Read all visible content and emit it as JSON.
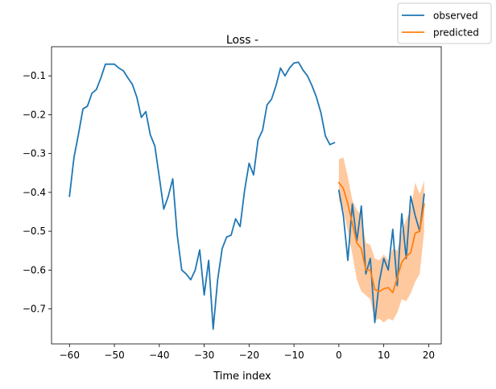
{
  "chart_data": {
    "type": "line",
    "title": "Loss -",
    "xlabel": "Time index",
    "ylabel": "",
    "xlim": [
      -64,
      22.8
    ],
    "ylim": [
      -0.79,
      -0.025
    ],
    "xticks": [
      -60,
      -50,
      -40,
      -30,
      -20,
      -10,
      0,
      10,
      20
    ],
    "xtick_labels": [
      "−60",
      "−50",
      "−40",
      "−30",
      "−20",
      "−10",
      "0",
      "10",
      "20"
    ],
    "yticks": [
      -0.1,
      -0.2,
      -0.3,
      -0.4,
      -0.5,
      -0.6,
      -0.7
    ],
    "ytick_labels": [
      "−0.1",
      "−0.2",
      "−0.3",
      "−0.4",
      "−0.5",
      "−0.6",
      "−0.7"
    ],
    "grid": false,
    "legend_position": "top-right",
    "legend": [
      "observed",
      "predicted"
    ],
    "series": [
      {
        "name": "observed",
        "color": "#1f77b4",
        "x": [
          -60,
          -59,
          -58,
          -57,
          -56,
          -55,
          -54,
          -53,
          -52,
          -51,
          -50,
          -49,
          -48,
          -47,
          -46,
          -45,
          -44,
          -43,
          -42,
          -41,
          -40,
          -39,
          -38,
          -37,
          -36,
          -35,
          -34,
          -33,
          -32,
          -31,
          -30,
          -29,
          -28,
          -27,
          -26,
          -25,
          -24,
          -23,
          -22,
          -21,
          -20,
          -19,
          -18,
          -17,
          -16,
          -15,
          -14,
          -13,
          -12,
          -11,
          -10,
          -9,
          -8,
          -7,
          -6,
          -5,
          -4,
          -3,
          -2,
          -1
        ],
        "y": [
          -0.41,
          -0.31,
          -0.25,
          -0.185,
          -0.178,
          -0.145,
          -0.135,
          -0.105,
          -0.07,
          -0.07,
          -0.07,
          -0.08,
          -0.087,
          -0.105,
          -0.122,
          -0.155,
          -0.207,
          -0.192,
          -0.252,
          -0.28,
          -0.36,
          -0.443,
          -0.41,
          -0.365,
          -0.51,
          -0.6,
          -0.61,
          -0.625,
          -0.6,
          -0.548,
          -0.664,
          -0.575,
          -0.752,
          -0.625,
          -0.545,
          -0.515,
          -0.51,
          -0.468,
          -0.488,
          -0.395,
          -0.325,
          -0.355,
          -0.265,
          -0.24,
          -0.175,
          -0.16,
          -0.125,
          -0.08,
          -0.1,
          -0.08,
          -0.067,
          -0.065,
          -0.085,
          -0.1,
          -0.125,
          -0.155,
          -0.195,
          -0.255,
          -0.277,
          -0.272
        ]
      },
      {
        "name": "observed",
        "color": "#1f77b4",
        "x": [
          0,
          1,
          2,
          3,
          4,
          5,
          6,
          7,
          8,
          9,
          10,
          11,
          12,
          13,
          14,
          15,
          16,
          17,
          18,
          19
        ],
        "y": [
          -0.395,
          -0.46,
          -0.575,
          -0.43,
          -0.525,
          -0.435,
          -0.61,
          -0.57,
          -0.735,
          -0.63,
          -0.57,
          -0.6,
          -0.495,
          -0.64,
          -0.455,
          -0.57,
          -0.41,
          -0.46,
          -0.5,
          -0.405
        ]
      },
      {
        "name": "predicted",
        "color": "#ff7f0e",
        "band_color": "#ffbb88",
        "x": [
          0,
          1,
          2,
          3,
          4,
          5,
          6,
          7,
          8,
          9,
          10,
          11,
          12,
          13,
          14,
          15,
          16,
          17,
          18,
          19
        ],
        "y": [
          -0.375,
          -0.39,
          -0.43,
          -0.48,
          -0.53,
          -0.545,
          -0.6,
          -0.6,
          -0.65,
          -0.655,
          -0.648,
          -0.645,
          -0.658,
          -0.62,
          -0.58,
          -0.565,
          -0.555,
          -0.505,
          -0.5,
          -0.43
        ],
        "upper": [
          -0.315,
          -0.31,
          -0.36,
          -0.42,
          -0.445,
          -0.46,
          -0.53,
          -0.535,
          -0.57,
          -0.575,
          -0.56,
          -0.575,
          -0.545,
          -0.55,
          -0.5,
          -0.47,
          -0.445,
          -0.375,
          -0.405,
          -0.37
        ],
        "lower": [
          -0.42,
          -0.445,
          -0.5,
          -0.56,
          -0.625,
          -0.655,
          -0.665,
          -0.675,
          -0.73,
          -0.725,
          -0.735,
          -0.725,
          -0.73,
          -0.71,
          -0.675,
          -0.68,
          -0.66,
          -0.63,
          -0.61,
          -0.5
        ]
      }
    ]
  }
}
